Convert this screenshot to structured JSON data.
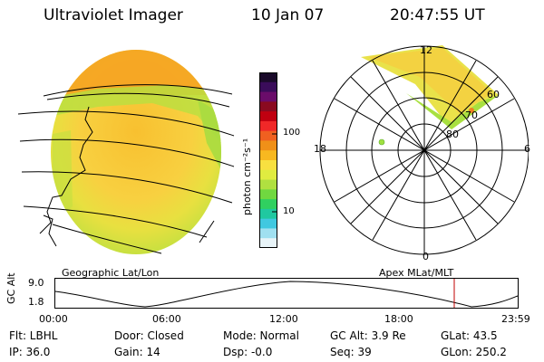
{
  "header": {
    "title": "Ultraviolet Imager",
    "date": "10 Jan 07",
    "time": "20:47:55 UT"
  },
  "colorbar": {
    "unit_label": "photon cm⁻²s⁻¹",
    "ticks": [
      "100",
      "10"
    ],
    "colors": [
      "#1a0a2a",
      "#3a0c5a",
      "#6a0c6a",
      "#8a0a20",
      "#c00010",
      "#f02828",
      "#f06020",
      "#f09018",
      "#f8b820",
      "#f8e040",
      "#e0ec40",
      "#b0e040",
      "#70d840",
      "#30d060",
      "#20c8a0",
      "#40c8e0",
      "#a0e0f0",
      "#e8f4f8"
    ]
  },
  "left_panel": {
    "label": "Geographic Lat/Lon"
  },
  "right_panel": {
    "label": "Apex MLat/MLT",
    "mlt_labels": [
      "12",
      "18",
      "6",
      "0"
    ],
    "lat_labels": [
      "60",
      "70",
      "80"
    ]
  },
  "altitude_plot": {
    "y_label": "GC Alt",
    "y_ticks": [
      "9.0",
      "1.8"
    ],
    "x_ticks": [
      "00:00",
      "06:00",
      "12:00",
      "18:00",
      "23:59"
    ],
    "marker_color": "#c00000"
  },
  "info": {
    "filter": "Flt: LBHL",
    "door": "Door: Closed",
    "mode": "Mode: Normal",
    "gc_alt": "GC Alt: 3.9 Re",
    "glat": "GLat: 43.5",
    "ip": "IP: 36.0",
    "gain": "Gain: 14",
    "dsp": "Dsp: -0.0",
    "seq": "Seq: 39",
    "glon": "GLon: 250.2"
  }
}
